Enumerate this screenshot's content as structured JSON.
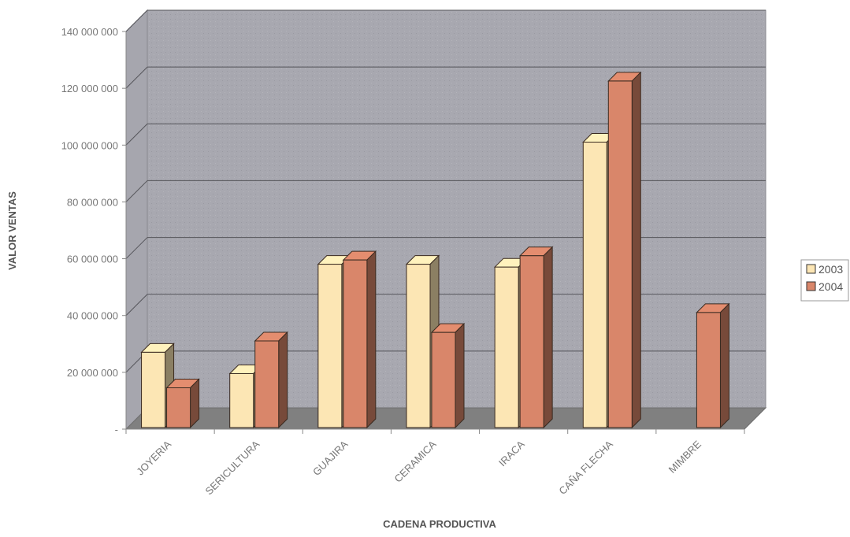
{
  "chart_data": {
    "type": "bar",
    "title": "",
    "xlabel": "CADENA PRODUCTIVA",
    "ylabel": "VALOR VENTAS",
    "categories": [
      "JOYERIA",
      "SERICULTURA",
      "GUAJIRA",
      "CERAMICA",
      "IRACA",
      "CAÑA FLECHA",
      "MIMBRE"
    ],
    "series": [
      {
        "name": "2003",
        "values": [
          26500000,
          19000000,
          57500000,
          57500000,
          56500000,
          100500000,
          0
        ],
        "color": "#FCE6B4"
      },
      {
        "name": "2004",
        "values": [
          14000000,
          30500000,
          59000000,
          33500000,
          60500000,
          122000000,
          40500000
        ],
        "color": "#D9866A"
      }
    ],
    "ylim": [
      0,
      140000000
    ],
    "yticks": [
      0,
      20000000,
      40000000,
      60000000,
      80000000,
      100000000,
      120000000,
      140000000
    ],
    "ytick_labels": [
      "-",
      "20 000 000",
      "40 000 000",
      "60 000 000",
      "80 000 000",
      "100 000 000",
      "120 000 000",
      "140 000 000"
    ],
    "grid": true,
    "legend": "right",
    "style": "3d-clustered-column",
    "wall_color": "#A6A6AE",
    "floor_color": "#808080"
  }
}
